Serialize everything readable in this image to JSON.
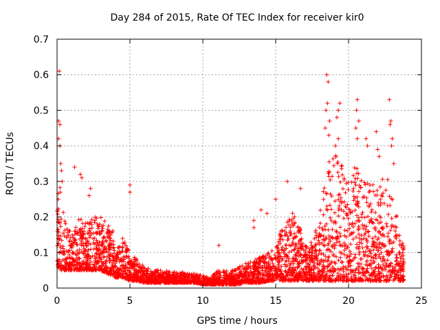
{
  "chart_data": {
    "type": "scatter",
    "title": "Day 284 of 2015, Rate Of TEC Index for receiver kir0",
    "xlabel": "GPS time / hours",
    "ylabel": "ROTI / TECUs",
    "xlim": [
      0,
      25
    ],
    "ylim": [
      0,
      0.7
    ],
    "xticks": [
      0,
      5,
      10,
      15,
      20,
      25
    ],
    "yticks": [
      0,
      0.1,
      0.2,
      0.3,
      0.4,
      0.5,
      0.6,
      0.7
    ],
    "xtick_labels": [
      "0",
      "5",
      "10",
      "15",
      "20",
      "25"
    ],
    "ytick_labels": [
      "0",
      "0.1",
      "0.2",
      "0.3",
      "0.4",
      "0.5",
      "0.6",
      "0.7"
    ],
    "grid": true,
    "marker": "+",
    "color": "#ff0000",
    "envelope": {
      "x": [
        0,
        0.2,
        0.5,
        1,
        1.5,
        2,
        2.5,
        3,
        3.5,
        4,
        4.5,
        5,
        5.5,
        6,
        6.5,
        7,
        7.5,
        8,
        8.5,
        9,
        9.5,
        10,
        10.5,
        11,
        11.5,
        12,
        12.5,
        13,
        13.5,
        14,
        14.5,
        15,
        15.5,
        16,
        16.5,
        17,
        17.5,
        18,
        18.5,
        19,
        19.5,
        20,
        20.5,
        21,
        21.5,
        22,
        22.5,
        23,
        23.5,
        23.8
      ],
      "base": [
        0.06,
        0.05,
        0.05,
        0.05,
        0.05,
        0.05,
        0.05,
        0.05,
        0.04,
        0.03,
        0.03,
        0.02,
        0.02,
        0.015,
        0.015,
        0.015,
        0.015,
        0.015,
        0.015,
        0.015,
        0.015,
        0.01,
        0.01,
        0.01,
        0.01,
        0.01,
        0.01,
        0.015,
        0.015,
        0.015,
        0.02,
        0.02,
        0.02,
        0.02,
        0.02,
        0.02,
        0.02,
        0.02,
        0.02,
        0.02,
        0.02,
        0.02,
        0.02,
        0.02,
        0.02,
        0.02,
        0.02,
        0.02,
        0.02,
        0.02
      ],
      "top": [
        0.28,
        0.35,
        0.2,
        0.15,
        0.2,
        0.18,
        0.2,
        0.2,
        0.18,
        0.15,
        0.14,
        0.1,
        0.08,
        0.06,
        0.05,
        0.05,
        0.05,
        0.045,
        0.045,
        0.04,
        0.04,
        0.035,
        0.03,
        0.05,
        0.05,
        0.05,
        0.06,
        0.07,
        0.08,
        0.09,
        0.1,
        0.12,
        0.18,
        0.22,
        0.2,
        0.12,
        0.13,
        0.2,
        0.35,
        0.38,
        0.35,
        0.3,
        0.35,
        0.3,
        0.3,
        0.28,
        0.32,
        0.3,
        0.15,
        0.12
      ]
    },
    "outliers": [
      {
        "x": 0.15,
        "y": 0.61
      },
      {
        "x": 0.1,
        "y": 0.47
      },
      {
        "x": 0.2,
        "y": 0.46
      },
      {
        "x": 0.1,
        "y": 0.42
      },
      {
        "x": 0.2,
        "y": 0.4
      },
      {
        "x": 0.25,
        "y": 0.35
      },
      {
        "x": 0.3,
        "y": 0.33
      },
      {
        "x": 0.35,
        "y": 0.3
      },
      {
        "x": 1.2,
        "y": 0.34
      },
      {
        "x": 1.6,
        "y": 0.32
      },
      {
        "x": 1.7,
        "y": 0.31
      },
      {
        "x": 2.3,
        "y": 0.28
      },
      {
        "x": 2.2,
        "y": 0.26
      },
      {
        "x": 5.0,
        "y": 0.29
      },
      {
        "x": 5.0,
        "y": 0.27
      },
      {
        "x": 11.1,
        "y": 0.12
      },
      {
        "x": 13.5,
        "y": 0.19
      },
      {
        "x": 13.5,
        "y": 0.17
      },
      {
        "x": 14.0,
        "y": 0.22
      },
      {
        "x": 14.4,
        "y": 0.21
      },
      {
        "x": 15.0,
        "y": 0.25
      },
      {
        "x": 15.8,
        "y": 0.3
      },
      {
        "x": 16.7,
        "y": 0.28
      },
      {
        "x": 18.5,
        "y": 0.6
      },
      {
        "x": 18.6,
        "y": 0.58
      },
      {
        "x": 18.55,
        "y": 0.52
      },
      {
        "x": 18.45,
        "y": 0.5
      },
      {
        "x": 18.7,
        "y": 0.47
      },
      {
        "x": 18.4,
        "y": 0.45
      },
      {
        "x": 18.65,
        "y": 0.43
      },
      {
        "x": 19.3,
        "y": 0.5
      },
      {
        "x": 19.2,
        "y": 0.48
      },
      {
        "x": 19.4,
        "y": 0.52
      },
      {
        "x": 19.3,
        "y": 0.42
      },
      {
        "x": 19.1,
        "y": 0.4
      },
      {
        "x": 20.6,
        "y": 0.53
      },
      {
        "x": 20.55,
        "y": 0.5
      },
      {
        "x": 20.7,
        "y": 0.47
      },
      {
        "x": 20.5,
        "y": 0.45
      },
      {
        "x": 20.6,
        "y": 0.42
      },
      {
        "x": 21.2,
        "y": 0.42
      },
      {
        "x": 21.3,
        "y": 0.4
      },
      {
        "x": 21.9,
        "y": 0.44
      },
      {
        "x": 22.0,
        "y": 0.39
      },
      {
        "x": 22.1,
        "y": 0.37
      },
      {
        "x": 22.8,
        "y": 0.53
      },
      {
        "x": 22.9,
        "y": 0.47
      },
      {
        "x": 22.85,
        "y": 0.46
      },
      {
        "x": 23.0,
        "y": 0.42
      },
      {
        "x": 22.95,
        "y": 0.4
      },
      {
        "x": 23.1,
        "y": 0.35
      }
    ]
  }
}
